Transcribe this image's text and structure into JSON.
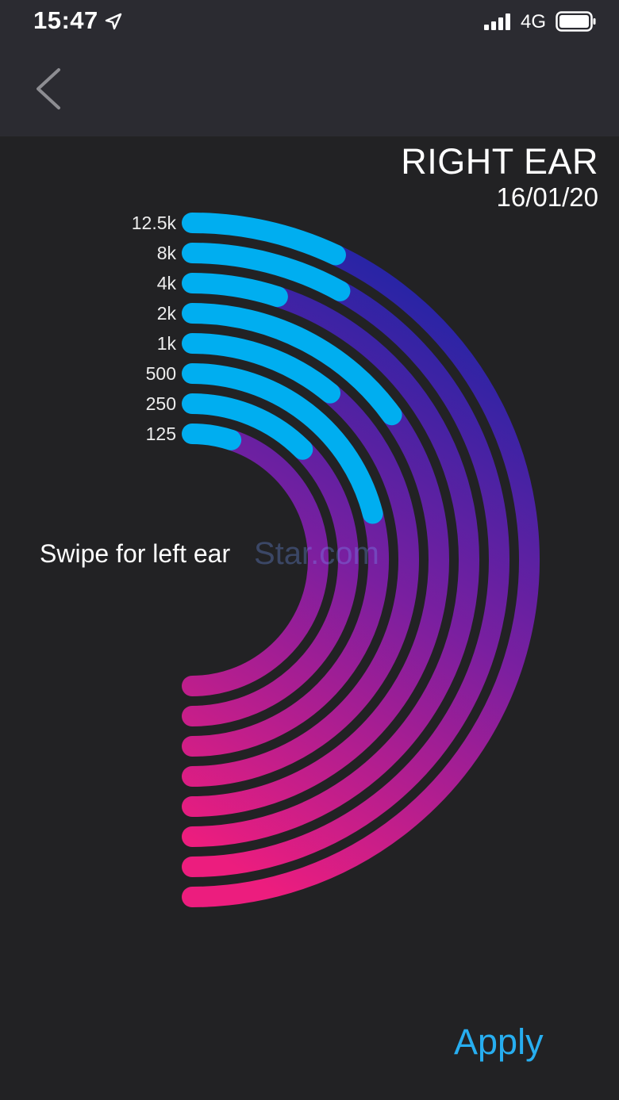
{
  "status_bar": {
    "time": "15:47",
    "network": "4G"
  },
  "header": {
    "ear_title": "RIGHT EAR",
    "date": "16/01/20"
  },
  "chart_data": {
    "type": "radial-bar",
    "series": [
      {
        "label": "12.5k",
        "threshold_fraction": 0.14
      },
      {
        "label": "8k",
        "threshold_fraction": 0.16
      },
      {
        "label": "4k",
        "threshold_fraction": 0.1
      },
      {
        "label": "2k",
        "threshold_fraction": 0.3
      },
      {
        "label": "1k",
        "threshold_fraction": 0.22
      },
      {
        "label": "500",
        "threshold_fraction": 0.42
      },
      {
        "label": "250",
        "threshold_fraction": 0.25
      },
      {
        "label": "125",
        "threshold_fraction": 0.1
      }
    ],
    "colors": {
      "filled": "#00aef0",
      "gradient_start": "#ec1d7e",
      "gradient_mid": "#7a1fa0",
      "gradient_end": "#1a25a6"
    }
  },
  "hint": {
    "swipe": "Swipe for left ear"
  },
  "watermark": "Star.com",
  "actions": {
    "apply": "Apply"
  }
}
